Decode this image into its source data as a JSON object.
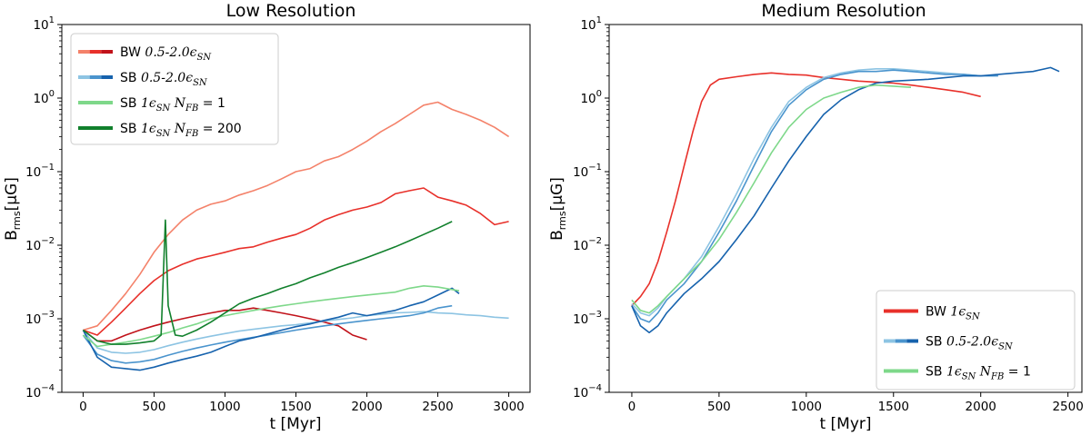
{
  "chart_data": [
    {
      "type": "line",
      "title": "Low Resolution",
      "xlabel": "t [Myr]",
      "ylabel_main": "B",
      "ylabel_sub": "rms",
      "ylabel_rest": "[μG]",
      "xscale": "linear",
      "yscale": "log",
      "xlim": [
        -150,
        3150
      ],
      "ylim": [
        0.0001,
        10
      ],
      "x_ticks": [
        0,
        500,
        1000,
        1500,
        2000,
        2500,
        3000
      ],
      "x_tick_labels": [
        "0",
        "500",
        "1000",
        "1500",
        "2000",
        "2500",
        "3000"
      ],
      "y_ticks": [
        0.0001,
        0.001,
        0.01,
        0.1,
        1,
        10
      ],
      "y_tick_labels": [
        {
          "base": "10",
          "exp": "−4"
        },
        {
          "base": "10",
          "exp": "−3"
        },
        {
          "base": "10",
          "exp": "−2"
        },
        {
          "base": "10",
          "exp": "−1"
        },
        {
          "base": "10",
          "exp": "0"
        },
        {
          "base": "10",
          "exp": "1"
        }
      ],
      "legend_position": "upper-left",
      "legend": [
        {
          "colors": [
            "#f4826a",
            "#e8302a",
            "#c1121a"
          ],
          "prefix": "BW ",
          "math": "0.5-2.0ϵ",
          "sub": "SN",
          "suffix": ""
        },
        {
          "colors": [
            "#8dc4e3",
            "#4a94cd",
            "#1662ad"
          ],
          "prefix": "SB ",
          "math": "0.5-2.0ϵ",
          "sub": "SN",
          "suffix": ""
        },
        {
          "colors": [
            "#7ed88a"
          ],
          "prefix": "SB ",
          "math": "1ϵ",
          "sub": "SN",
          "suffix": "N",
          "suffix_sub": "FB",
          "suffix_rest": " = 1"
        },
        {
          "colors": [
            "#11802c"
          ],
          "prefix": "SB ",
          "math": "1ϵ",
          "sub": "SN",
          "suffix": "N",
          "suffix_sub": "FB",
          "suffix_rest": " = 200"
        }
      ],
      "series": [
        {
          "name": "BW 0.5ϵSN",
          "color": "#f4826a",
          "x": [
            0,
            100,
            200,
            300,
            400,
            500,
            600,
            700,
            800,
            900,
            1000,
            1100,
            1200,
            1300,
            1400,
            1500,
            1600,
            1700,
            1800,
            1900,
            2000,
            2100,
            2200,
            2300,
            2400,
            2500,
            2600,
            2700,
            2800,
            2900,
            3000
          ],
          "y": [
            0.0007,
            0.0008,
            0.0013,
            0.0022,
            0.004,
            0.008,
            0.014,
            0.022,
            0.03,
            0.036,
            0.04,
            0.048,
            0.055,
            0.065,
            0.08,
            0.1,
            0.11,
            0.14,
            0.16,
            0.2,
            0.26,
            0.35,
            0.45,
            0.6,
            0.8,
            0.88,
            0.7,
            0.6,
            0.5,
            0.4,
            0.3
          ]
        },
        {
          "name": "BW 1ϵSN",
          "color": "#e8302a",
          "x": [
            0,
            100,
            200,
            300,
            400,
            500,
            600,
            700,
            800,
            900,
            1000,
            1100,
            1200,
            1300,
            1400,
            1500,
            1600,
            1700,
            1800,
            1900,
            2000,
            2100,
            2200,
            2300,
            2400,
            2500,
            2600,
            2700,
            2800,
            2900,
            3000
          ],
          "y": [
            0.0007,
            0.0006,
            0.0009,
            0.0014,
            0.0022,
            0.0033,
            0.0045,
            0.0055,
            0.0065,
            0.0072,
            0.008,
            0.009,
            0.0095,
            0.011,
            0.0125,
            0.014,
            0.017,
            0.022,
            0.026,
            0.03,
            0.033,
            0.038,
            0.05,
            0.055,
            0.06,
            0.045,
            0.04,
            0.035,
            0.027,
            0.019,
            0.021
          ]
        },
        {
          "name": "BW 2ϵSN",
          "color": "#c1121a",
          "x": [
            0,
            100,
            200,
            300,
            400,
            500,
            600,
            700,
            800,
            900,
            1000,
            1100,
            1200,
            1300,
            1400,
            1500,
            1600,
            1700,
            1800,
            1900,
            2000
          ],
          "y": [
            0.0007,
            0.0005,
            0.0005,
            0.0006,
            0.0007,
            0.0008,
            0.0009,
            0.001,
            0.0011,
            0.0012,
            0.0013,
            0.0013,
            0.0014,
            0.0013,
            0.0012,
            0.0011,
            0.001,
            0.0009,
            0.0008,
            0.0006,
            0.00052
          ]
        },
        {
          "name": "SB 0.5ϵSN",
          "color": "#8dc4e3",
          "x": [
            0,
            100,
            200,
            300,
            400,
            500,
            600,
            700,
            800,
            900,
            1000,
            1100,
            1200,
            1300,
            1400,
            1500,
            1600,
            1700,
            1800,
            1900,
            2000,
            2100,
            2200,
            2300,
            2400,
            2500,
            2600,
            2700,
            2800,
            2900,
            3000
          ],
          "y": [
            0.0007,
            0.0004,
            0.00035,
            0.00034,
            0.00035,
            0.00038,
            0.00043,
            0.00048,
            0.00053,
            0.00058,
            0.00063,
            0.00068,
            0.00072,
            0.00076,
            0.0008,
            0.00083,
            0.00088,
            0.00093,
            0.00098,
            0.00103,
            0.0011,
            0.00115,
            0.0012,
            0.00122,
            0.00125,
            0.0012,
            0.00118,
            0.00113,
            0.0011,
            0.00105,
            0.00102
          ]
        },
        {
          "name": "SB 1ϵSN",
          "color": "#4a94cd",
          "x": [
            0,
            100,
            200,
            300,
            400,
            500,
            600,
            700,
            800,
            900,
            1000,
            1100,
            1200,
            1300,
            1400,
            1500,
            1600,
            1700,
            1800,
            1900,
            2000,
            2100,
            2200,
            2300,
            2400,
            2500,
            2600
          ],
          "y": [
            0.0006,
            0.00033,
            0.00027,
            0.00025,
            0.00026,
            0.00028,
            0.00032,
            0.00036,
            0.0004,
            0.00044,
            0.00048,
            0.00052,
            0.00056,
            0.0006,
            0.00065,
            0.0007,
            0.00075,
            0.0008,
            0.00085,
            0.0009,
            0.00095,
            0.001,
            0.00105,
            0.0011,
            0.0012,
            0.0014,
            0.0015
          ]
        },
        {
          "name": "SB 2ϵSN",
          "color": "#1662ad",
          "x": [
            0,
            100,
            200,
            300,
            400,
            500,
            600,
            700,
            800,
            900,
            1000,
            1100,
            1200,
            1300,
            1400,
            1500,
            1600,
            1700,
            1800,
            1900,
            2000,
            2100,
            2200,
            2300,
            2400,
            2500,
            2600,
            2650
          ],
          "y": [
            0.0007,
            0.0003,
            0.00022,
            0.00021,
            0.0002,
            0.00022,
            0.00025,
            0.00028,
            0.00031,
            0.00035,
            0.00042,
            0.0005,
            0.00055,
            0.00062,
            0.0007,
            0.00078,
            0.00085,
            0.00095,
            0.00105,
            0.0012,
            0.0011,
            0.0012,
            0.0013,
            0.0015,
            0.0017,
            0.0021,
            0.0026,
            0.0022
          ]
        },
        {
          "name": "SB 1ϵSN NFB=1",
          "color": "#7ed88a",
          "x": [
            0,
            100,
            200,
            300,
            400,
            500,
            600,
            700,
            800,
            900,
            1000,
            1100,
            1200,
            1300,
            1400,
            1500,
            1600,
            1700,
            1800,
            1900,
            2000,
            2100,
            2200,
            2300,
            2400,
            2500,
            2600,
            2650
          ],
          "y": [
            0.0006,
            0.00042,
            0.00045,
            0.00048,
            0.00052,
            0.00058,
            0.00065,
            0.00075,
            0.00085,
            0.001,
            0.0011,
            0.0012,
            0.0013,
            0.0014,
            0.0015,
            0.0016,
            0.0017,
            0.0018,
            0.0019,
            0.002,
            0.0021,
            0.0022,
            0.0023,
            0.0026,
            0.0028,
            0.0027,
            0.0025,
            0.0024
          ]
        },
        {
          "name": "SB 1ϵSN NFB=200",
          "color": "#11802c",
          "x": [
            0,
            100,
            200,
            300,
            400,
            500,
            550,
            580,
            600,
            650,
            700,
            800,
            900,
            1000,
            1100,
            1200,
            1300,
            1400,
            1500,
            1600,
            1700,
            1800,
            1900,
            2000,
            2100,
            2200,
            2300,
            2400,
            2500,
            2600
          ],
          "y": [
            0.0007,
            0.0005,
            0.00045,
            0.00045,
            0.00047,
            0.0005,
            0.0006,
            0.022,
            0.0015,
            0.0006,
            0.00058,
            0.0007,
            0.0009,
            0.0012,
            0.0016,
            0.0019,
            0.0022,
            0.0026,
            0.003,
            0.0036,
            0.0042,
            0.005,
            0.0058,
            0.0068,
            0.008,
            0.0095,
            0.0115,
            0.014,
            0.017,
            0.021
          ]
        }
      ]
    },
    {
      "type": "line",
      "title": "Medium Resolution",
      "xlabel": "t [Myr]",
      "ylabel_main": "B",
      "ylabel_sub": "rms",
      "ylabel_rest": "[μG]",
      "xscale": "linear",
      "yscale": "log",
      "xlim": [
        -130,
        2580
      ],
      "ylim": [
        0.0001,
        10
      ],
      "x_ticks": [
        0,
        500,
        1000,
        1500,
        2000,
        2500
      ],
      "x_tick_labels": [
        "0",
        "500",
        "1000",
        "1500",
        "2000",
        "2500"
      ],
      "y_ticks": [
        0.0001,
        0.001,
        0.01,
        0.1,
        1,
        10
      ],
      "y_tick_labels": [
        {
          "base": "10",
          "exp": "−4"
        },
        {
          "base": "10",
          "exp": "−3"
        },
        {
          "base": "10",
          "exp": "−2"
        },
        {
          "base": "10",
          "exp": "−1"
        },
        {
          "base": "10",
          "exp": "0"
        },
        {
          "base": "10",
          "exp": "1"
        }
      ],
      "legend_position": "lower-right",
      "legend": [
        {
          "colors": [
            "#e8302a"
          ],
          "prefix": "BW ",
          "math": "1ϵ",
          "sub": "SN",
          "suffix": ""
        },
        {
          "colors": [
            "#8dc4e3",
            "#4a94cd",
            "#1662ad"
          ],
          "prefix": "SB ",
          "math": "0.5-2.0ϵ",
          "sub": "SN",
          "suffix": ""
        },
        {
          "colors": [
            "#7ed88a"
          ],
          "prefix": "SB ",
          "math": "1ϵ",
          "sub": "SN",
          "suffix": "N",
          "suffix_sub": "FB",
          "suffix_rest": " = 1"
        }
      ],
      "series": [
        {
          "name": "BW 1ϵSN",
          "color": "#e8302a",
          "x": [
            0,
            50,
            100,
            150,
            200,
            250,
            300,
            350,
            400,
            450,
            500,
            600,
            700,
            800,
            900,
            1000,
            1100,
            1200,
            1300,
            1400,
            1500,
            1600,
            1700,
            1800,
            1900,
            2000
          ],
          "y": [
            0.0015,
            0.002,
            0.003,
            0.006,
            0.015,
            0.04,
            0.12,
            0.35,
            0.9,
            1.5,
            1.8,
            1.95,
            2.1,
            2.2,
            2.1,
            2.05,
            1.9,
            1.8,
            1.7,
            1.65,
            1.6,
            1.5,
            1.4,
            1.3,
            1.2,
            1.05
          ]
        },
        {
          "name": "SB 0.5ϵSN",
          "color": "#8dc4e3",
          "x": [
            0,
            50,
            100,
            150,
            200,
            300,
            400,
            500,
            600,
            700,
            800,
            900,
            1000,
            1100,
            1200,
            1300,
            1400,
            1500,
            1600,
            1700,
            1800,
            1900,
            2000
          ],
          "y": [
            0.0016,
            0.0012,
            0.0011,
            0.0014,
            0.002,
            0.0035,
            0.007,
            0.018,
            0.05,
            0.15,
            0.4,
            0.9,
            1.4,
            1.9,
            2.2,
            2.4,
            2.5,
            2.5,
            2.4,
            2.3,
            2.2,
            2.1,
            2.0
          ]
        },
        {
          "name": "SB 1ϵSN",
          "color": "#4a94cd",
          "x": [
            0,
            50,
            100,
            150,
            200,
            300,
            400,
            500,
            600,
            700,
            800,
            900,
            1000,
            1100,
            1200,
            1300,
            1400,
            1500,
            1600,
            1700,
            1800,
            1900,
            2000,
            2100
          ],
          "y": [
            0.0015,
            0.001,
            0.0009,
            0.0012,
            0.0018,
            0.003,
            0.006,
            0.015,
            0.04,
            0.12,
            0.35,
            0.8,
            1.3,
            1.8,
            2.1,
            2.3,
            2.3,
            2.4,
            2.3,
            2.2,
            2.1,
            2.1,
            2.0,
            2.0
          ]
        },
        {
          "name": "SB 2ϵSN",
          "color": "#1662ad",
          "x": [
            0,
            50,
            100,
            150,
            200,
            300,
            400,
            500,
            600,
            700,
            800,
            900,
            1000,
            1100,
            1200,
            1300,
            1400,
            1500,
            1600,
            1700,
            1800,
            1900,
            2000,
            2100,
            2200,
            2300,
            2400,
            2450
          ],
          "y": [
            0.0015,
            0.0008,
            0.00065,
            0.0008,
            0.0012,
            0.0022,
            0.0035,
            0.006,
            0.012,
            0.025,
            0.06,
            0.14,
            0.3,
            0.6,
            0.95,
            1.3,
            1.6,
            1.7,
            1.75,
            1.8,
            1.9,
            2.0,
            2.0,
            2.1,
            2.2,
            2.3,
            2.6,
            2.3
          ]
        },
        {
          "name": "SB 1ϵSN NFB=1",
          "color": "#7ed88a",
          "x": [
            0,
            50,
            100,
            150,
            200,
            300,
            400,
            500,
            600,
            700,
            800,
            900,
            1000,
            1100,
            1200,
            1300,
            1400,
            1500,
            1600
          ],
          "y": [
            0.0018,
            0.0013,
            0.0012,
            0.0015,
            0.002,
            0.0035,
            0.006,
            0.012,
            0.028,
            0.07,
            0.18,
            0.4,
            0.7,
            1.0,
            1.2,
            1.4,
            1.5,
            1.45,
            1.4
          ]
        }
      ]
    }
  ]
}
